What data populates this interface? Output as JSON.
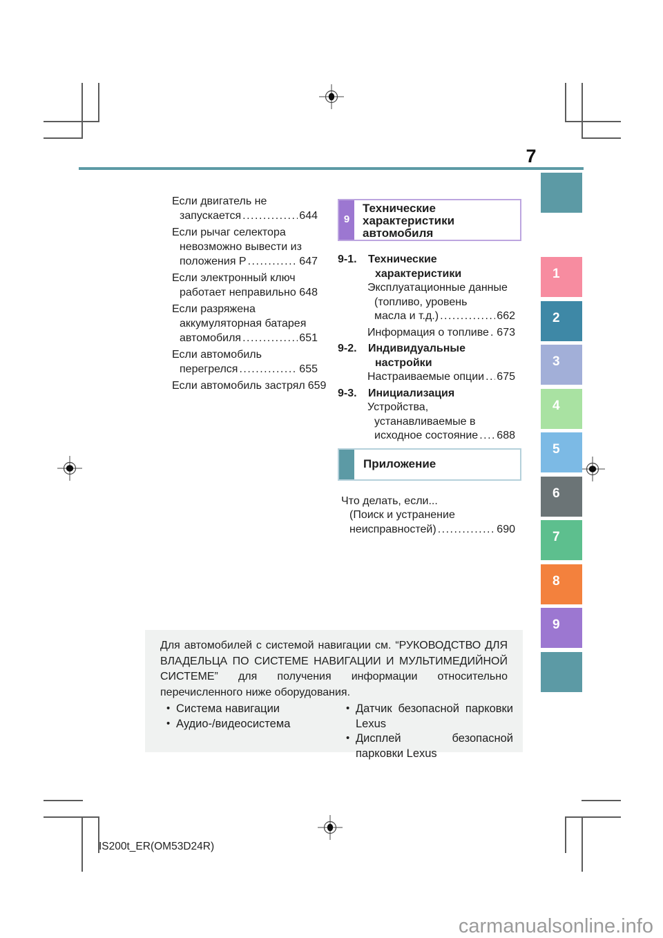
{
  "page": {
    "number": "7",
    "footer_code": "IS200t_ER(OM53D24R)",
    "watermark": "carmanualsonline.info"
  },
  "colors": {
    "teal": "#5C9AA5",
    "chapter_purple": "#9C77D1",
    "chapter_border": "#BCA5DF",
    "appendix_border": "#B4D0DA",
    "notice_bg": "#F0F2F1"
  },
  "left_toc": {
    "entries": [
      {
        "pre_lines": [
          "Если двигатель не"
        ],
        "last_line": "запускается",
        "page": "644"
      },
      {
        "pre_lines": [
          "Если рычаг селектора",
          "невозможно вывести из"
        ],
        "last_line": "положения P",
        "page": "647"
      },
      {
        "pre_lines": [
          "Если электронный ключ"
        ],
        "last_line": "работает неправильно",
        "page": "648"
      },
      {
        "pre_lines": [
          "Если разряжена",
          "аккумуляторная батарея"
        ],
        "last_line": "автомобиля",
        "page": "651"
      },
      {
        "pre_lines": [
          "Если автомобиль"
        ],
        "last_line": "перегрелся",
        "page": "655"
      },
      {
        "pre_lines": [],
        "last_line": "Если автомобиль застрял",
        "page": "659"
      }
    ]
  },
  "chapter": {
    "tab_number": "9",
    "title_lines": [
      "Технические",
      "характеристики",
      "автомобиля"
    ],
    "sections": [
      {
        "number": "9-1.",
        "heading_lines": [
          "Технические",
          "характеристики"
        ],
        "items": [
          {
            "pre_lines": [
              "Эксплуатационные данные",
              "(топливо, уровень"
            ],
            "last_line": "масла и т.д.)",
            "page": "662"
          },
          {
            "pre_lines": [],
            "last_line": "Информация о топливе",
            "page": "673"
          }
        ]
      },
      {
        "number": "9-2.",
        "heading_lines": [
          "Индивидуальные",
          "настройки"
        ],
        "items": [
          {
            "pre_lines": [],
            "last_line": "Настраиваемые опции",
            "page": "675"
          }
        ]
      },
      {
        "number": "9-3.",
        "heading_lines": [
          "Инициализация"
        ],
        "items": [
          {
            "pre_lines": [
              "Устройства,",
              "устанавливаемые в"
            ],
            "last_line": "исходное состояние",
            "page": "688"
          }
        ]
      }
    ]
  },
  "appendix": {
    "title": "Приложение",
    "entries": [
      {
        "pre_lines": [
          "Что делать, если...",
          "(Поиск и устранение"
        ],
        "last_line": "неисправностей)",
        "page": "690"
      }
    ]
  },
  "side_tabs": [
    {
      "label": "",
      "color": "#5C9AA5"
    },
    {
      "label": "1",
      "color": "#F78CA0"
    },
    {
      "label": "2",
      "color": "#3E88A6"
    },
    {
      "label": "3",
      "color": "#A2AFD8"
    },
    {
      "label": "4",
      "color": "#A9E2A2"
    },
    {
      "label": "5",
      "color": "#7CBAE5"
    },
    {
      "label": "6",
      "color": "#6B7476"
    },
    {
      "label": "7",
      "color": "#5DBF8E"
    },
    {
      "label": "8",
      "color": "#F3813D"
    },
    {
      "label": "9",
      "color": "#9C77D1"
    },
    {
      "label": "",
      "color": "#5C9AA5"
    }
  ],
  "notice_box": {
    "paragraph_lines": [
      "Для автомобилей с системой навигации см. “РУКОВОДСТВО ДЛЯ",
      "ВЛАДЕЛЬЦА ПО СИСТЕМЕ НАВИГАЦИИ И МУЛЬТИМЕДИЙНОЙ",
      "СИСТЕМЕ” для получения информации относительно",
      "перечисленного ниже оборудования."
    ],
    "bullets_left": [
      {
        "lines": [
          "Система навигации"
        ]
      },
      {
        "lines": [
          "Аудио-/видеосистема"
        ]
      }
    ],
    "bullets_right": [
      {
        "lines": [
          "Датчик безопасной парковки",
          "Lexus"
        ]
      },
      {
        "lines": [
          "Дисплей безопасной",
          "парковки Lexus"
        ]
      }
    ]
  }
}
